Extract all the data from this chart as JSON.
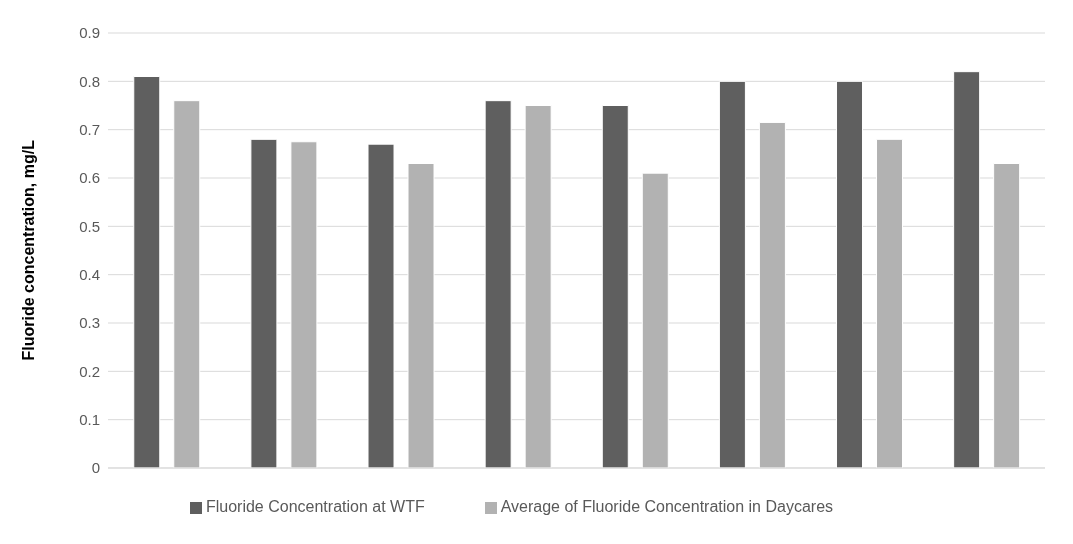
{
  "chart_data": {
    "type": "bar",
    "ylabel": "Fluoride concentration, mg/L",
    "categories": [
      null,
      null,
      null,
      null,
      null,
      null,
      null,
      null
    ],
    "series": [
      {
        "name": "Fluoride Concentration at WTF",
        "color": "#5f5f5f",
        "values": [
          0.81,
          0.68,
          0.67,
          0.76,
          0.75,
          0.8,
          0.8,
          0.82
        ]
      },
      {
        "name": "Average of Fluoride Concentration in Daycares",
        "color": "#b2b2b2",
        "values": [
          0.76,
          0.675,
          0.63,
          0.75,
          0.61,
          0.715,
          0.68,
          0.63
        ]
      }
    ],
    "ylim": [
      0,
      0.9
    ],
    "yticks": [
      0,
      0.1,
      0.2,
      0.3,
      0.4,
      0.5,
      0.6,
      0.7,
      0.8,
      0.9
    ],
    "grid": "y",
    "legend": "bottom"
  }
}
